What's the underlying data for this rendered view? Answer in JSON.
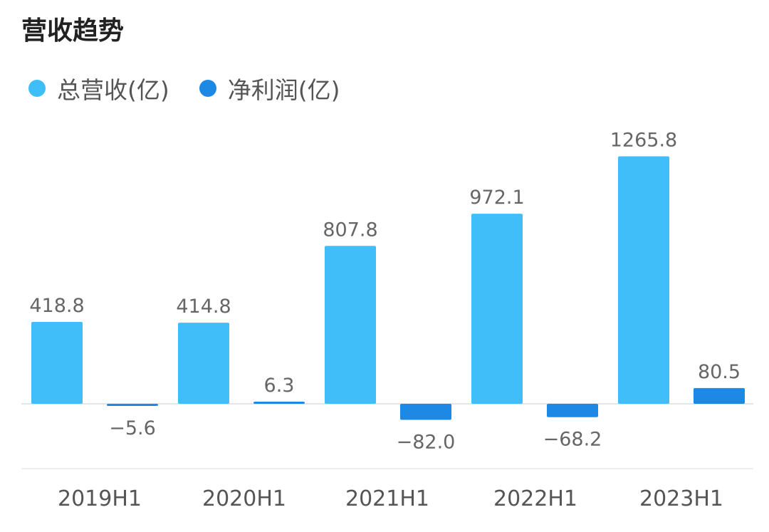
{
  "title": "营收趋势",
  "legend": [
    {
      "label": "总营收(亿)",
      "color": "#40BEFA"
    },
    {
      "label": "净利润(亿)",
      "color": "#1E88E5"
    }
  ],
  "chart_data": {
    "type": "bar",
    "title": "营收趋势",
    "categories": [
      "2019H1",
      "2020H1",
      "2021H1",
      "2022H1",
      "2023H1"
    ],
    "series": [
      {
        "name": "总营收(亿)",
        "color": "#40BEFA",
        "values": [
          418.8,
          414.8,
          807.8,
          972.1,
          1265.8
        ],
        "labels": [
          "418.8",
          "414.8",
          "807.8",
          "972.1",
          "1265.8"
        ]
      },
      {
        "name": "净利润(亿)",
        "color": "#1E88E5",
        "values": [
          -5.6,
          6.3,
          -82.0,
          -68.2,
          80.5
        ],
        "labels": [
          "−5.6",
          "6.3",
          "−82.0",
          "−68.2",
          "80.5"
        ]
      }
    ],
    "grid": false,
    "legend_position": "top-left"
  }
}
